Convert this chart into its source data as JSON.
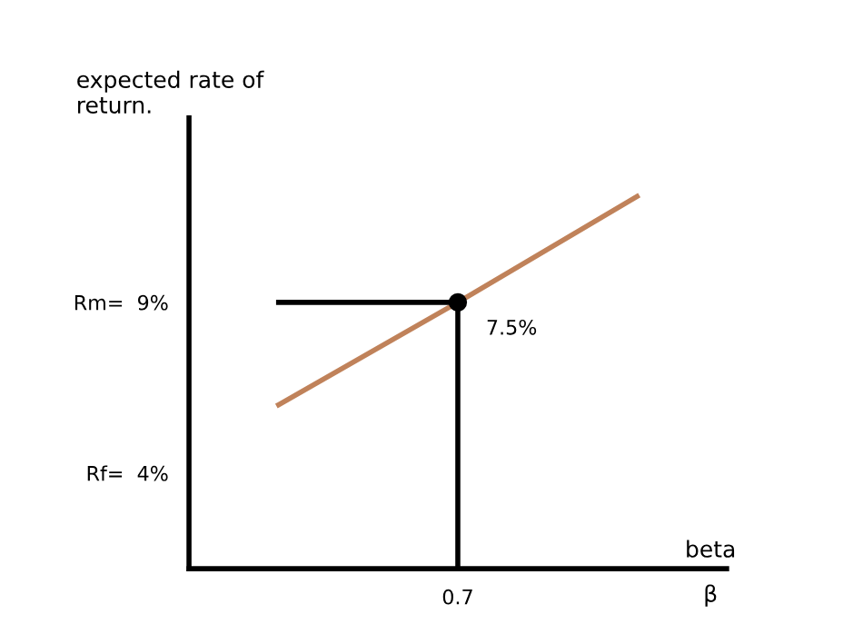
{
  "chart_data": {
    "type": "line",
    "ylabel": "expected rate of\nreturn.",
    "xlabel": "β",
    "categories": [
      null,
      "0.7",
      null
    ],
    "ylim": [
      1.2,
      14.4
    ],
    "yticks": [
      {
        "value": 4,
        "label": "Rf=  4%"
      },
      {
        "value": 9,
        "label": "Rm=  9%"
      }
    ],
    "series": [
      {
        "color": "#c0825a",
        "values": [
          6,
          9,
          12.1
        ]
      },
      {
        "color": "#000000",
        "values": [
          9,
          9,
          null
        ]
      },
      {
        "type": "scatter",
        "color": "#000000",
        "x": [
          "0.7"
        ],
        "values": [
          9
        ],
        "errors": [
          [
            1.2,
            9
          ]
        ],
        "marker": "circle"
      }
    ],
    "annotations": [
      "7.5%",
      "beta"
    ],
    "grid": false,
    "legend": false
  }
}
